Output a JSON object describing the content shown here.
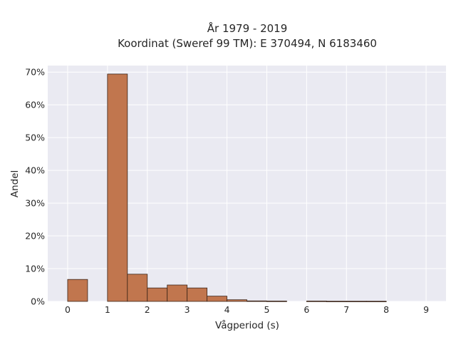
{
  "chart_data": {
    "type": "bar",
    "title_line1": "År 1979 - 2019",
    "title_line2": "Koordinat (Sweref 99 TM): E 370494, N 6183460",
    "xlabel": "Vågperiod (s)",
    "ylabel": "Andel",
    "xlim": [
      -0.5,
      9.5
    ],
    "ylim": [
      0,
      72
    ],
    "x_ticks": [
      0,
      1,
      2,
      3,
      4,
      5,
      6,
      7,
      8,
      9
    ],
    "x_tick_labels": [
      "0",
      "1",
      "2",
      "3",
      "4",
      "5",
      "6",
      "7",
      "8",
      "9"
    ],
    "y_ticks": [
      0,
      10,
      20,
      30,
      40,
      50,
      60,
      70
    ],
    "y_tick_labels": [
      "0%",
      "10%",
      "20%",
      "30%",
      "40%",
      "50%",
      "60%",
      "70%"
    ],
    "bin_width": 0.5,
    "bins": [
      {
        "x_start": 0.0,
        "value": 6.7
      },
      {
        "x_start": 0.5,
        "value": 0.0
      },
      {
        "x_start": 1.0,
        "value": 69.4
      },
      {
        "x_start": 1.5,
        "value": 8.3
      },
      {
        "x_start": 2.0,
        "value": 4.1
      },
      {
        "x_start": 2.5,
        "value": 5.0
      },
      {
        "x_start": 3.0,
        "value": 4.1
      },
      {
        "x_start": 3.5,
        "value": 1.6
      },
      {
        "x_start": 4.0,
        "value": 0.5
      },
      {
        "x_start": 4.5,
        "value": 0.15
      },
      {
        "x_start": 5.0,
        "value": 0.1
      },
      {
        "x_start": 5.5,
        "value": 0.0
      },
      {
        "x_start": 6.0,
        "value": 0.1
      },
      {
        "x_start": 6.5,
        "value": 0.05
      },
      {
        "x_start": 7.0,
        "value": 0.05
      },
      {
        "x_start": 7.5,
        "value": 0.05
      }
    ],
    "grid": true,
    "colors": {
      "bar_fill": "#c1764e",
      "bar_edge": "#3b2418",
      "plot_background": "#eaeaf2",
      "grid": "#ffffff"
    }
  }
}
